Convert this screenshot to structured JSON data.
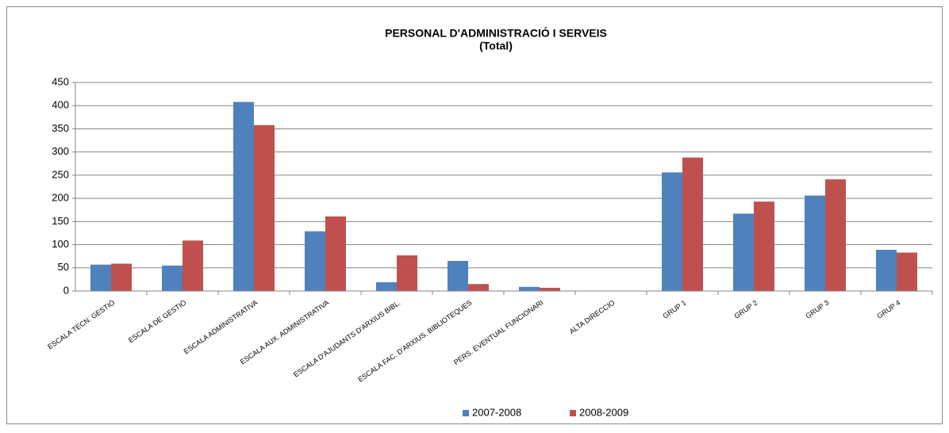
{
  "chart_data": {
    "type": "bar",
    "title": "PERSONAL D'ADMINISTRACIÓ  I SERVEIS",
    "subtitle": "(Total)",
    "categories": [
      "ESCALA TECN. GESTIÓ",
      "ESCALA DE GESTIÓ",
      "ESCALA ADMINISTRATIVA",
      "ESCALA AUX. ADMINISTRATIVA",
      "ESCALA D'AJUDANTS D'ARXIUS BIBL.",
      "ESCALA FAC. D'ARXIUS, BIBLIOTEQUES",
      "PERS. EVENTUAL FUNCIONARI",
      "ALTA DIRECCIO",
      "GRUP 1",
      "GRUP 2",
      "GRUP 3",
      "GRUP 4"
    ],
    "series": [
      {
        "name": "2007-2008",
        "color": "#4f81bd",
        "values": [
          57,
          55,
          408,
          129,
          19,
          65,
          9,
          0,
          256,
          167,
          206,
          89
        ]
      },
      {
        "name": "2008-2009",
        "color": "#c0504d",
        "values": [
          59,
          109,
          358,
          161,
          77,
          15,
          7,
          0,
          288,
          193,
          241,
          83
        ]
      }
    ],
    "ylim": [
      0,
      450
    ],
    "yticks": [
      0,
      50,
      100,
      150,
      200,
      250,
      300,
      350,
      400,
      450
    ],
    "grid": true,
    "legend": "bottom"
  }
}
